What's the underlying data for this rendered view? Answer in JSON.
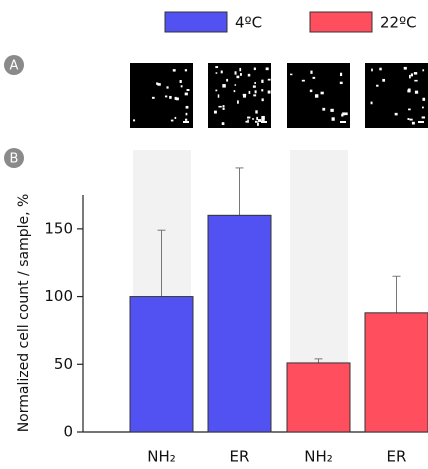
{
  "chart_data": {
    "type": "bar",
    "panel_labels": [
      "A",
      "B"
    ],
    "y_label": "Normalized cell count / sample, %",
    "categories": [
      "NH₂",
      "ER",
      "NH₂",
      "ER"
    ],
    "series": [
      {
        "name": "4ºC",
        "color": "#5252f2",
        "values": [
          100,
          160,
          null,
          null
        ],
        "errors": [
          49,
          35,
          null,
          null
        ]
      },
      {
        "name": "22ºC",
        "color": "#ff4f5f",
        "values": [
          null,
          null,
          51,
          88
        ],
        "errors": [
          null,
          null,
          3,
          27
        ]
      }
    ],
    "ylim": [
      0,
      175
    ],
    "yticks": [
      0,
      50,
      100,
      150
    ],
    "grid": false
  }
}
